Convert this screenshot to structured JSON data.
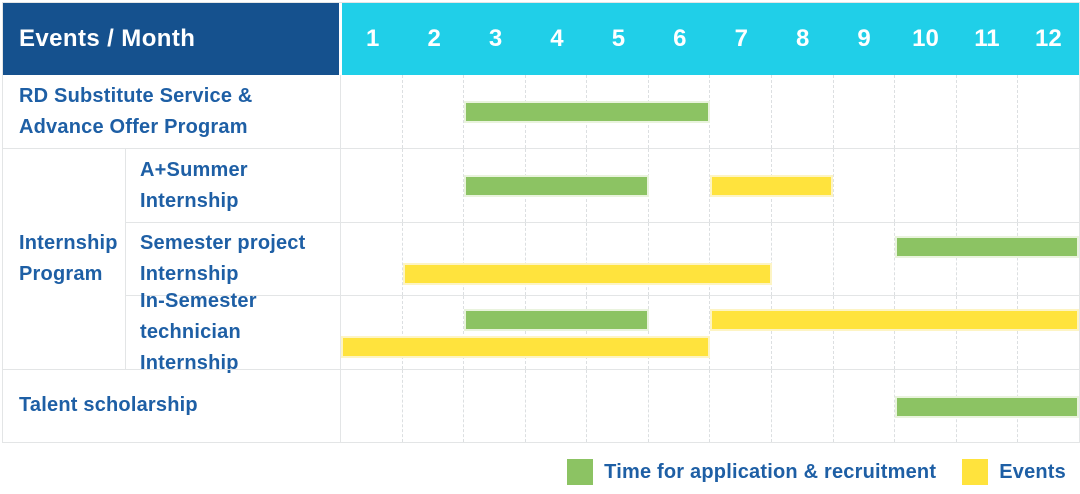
{
  "header": {
    "label": "Events / Month",
    "months": [
      "1",
      "2",
      "3",
      "4",
      "5",
      "6",
      "7",
      "8",
      "9",
      "10",
      "11",
      "12"
    ]
  },
  "group": {
    "label": "Internship Program",
    "label_lines": [
      "Internship",
      "Program"
    ]
  },
  "legend": {
    "items": [
      {
        "series": "Time for application & recruitment",
        "color": "#8CC363"
      },
      {
        "series": "Events",
        "color": "#FFE33D"
      }
    ]
  },
  "colors": {
    "header_bg": "#15518E",
    "header_text": "#FFFFFF",
    "months_bg": "#20CFE8",
    "bar_green": "#8CC363",
    "bar_yellow": "#FFE33D",
    "text_blue": "#1E5FA5"
  },
  "chart_data": {
    "type": "bar",
    "variant": "gantt",
    "title": "Events / Month",
    "x_axis": {
      "label": "Month",
      "range": [
        1,
        12
      ],
      "ticks": [
        "1",
        "2",
        "3",
        "4",
        "5",
        "6",
        "7",
        "8",
        "9",
        "10",
        "11",
        "12"
      ],
      "grid": "dashed-vertical"
    },
    "legend_position": "bottom-right",
    "series_colors": {
      "Time for application & recruitment": "#8CC363",
      "Events": "#FFE33D"
    },
    "rows": [
      {
        "group": null,
        "label": "RD Substitute Service & Advance Offer Program",
        "label_lines": [
          "RD Substitute Service &",
          "Advance Offer Program"
        ],
        "bars": [
          {
            "series": "Time for application & recruitment",
            "start_month": 3,
            "end_month": 6,
            "lane": "middle"
          }
        ]
      },
      {
        "group": "Internship Program",
        "label": "A+Summer Internship",
        "label_lines": [
          "A+Summer",
          "Internship"
        ],
        "bars": [
          {
            "series": "Time for application & recruitment",
            "start_month": 3,
            "end_month": 5,
            "lane": "middle"
          },
          {
            "series": "Events",
            "start_month": 7,
            "end_month": 8,
            "lane": "middle"
          }
        ]
      },
      {
        "group": "Internship Program",
        "label": "Semester project Internship",
        "label_lines": [
          "Semester project",
          "Internship"
        ],
        "bars": [
          {
            "series": "Time for application & recruitment",
            "start_month": 10,
            "end_month": 12,
            "lane": "top"
          },
          {
            "series": "Events",
            "start_month": 2,
            "end_month": 7,
            "lane": "bottom"
          }
        ]
      },
      {
        "group": "Internship Program",
        "label": "In-Semester technician Internship",
        "label_lines": [
          "In-Semester",
          "technician Internship"
        ],
        "bars": [
          {
            "series": "Time for application & recruitment",
            "start_month": 3,
            "end_month": 5,
            "lane": "top"
          },
          {
            "series": "Events",
            "start_month": 7,
            "end_month": 12,
            "lane": "top"
          },
          {
            "series": "Events",
            "start_month": 1,
            "end_month": 6,
            "lane": "bottom"
          }
        ]
      },
      {
        "group": null,
        "label": "Talent scholarship",
        "label_lines": [
          "Talent scholarship"
        ],
        "bars": [
          {
            "series": "Time for application & recruitment",
            "start_month": 10,
            "end_month": 12,
            "lane": "middle"
          }
        ]
      }
    ],
    "legend": [
      "Time for application & recruitment",
      "Events"
    ]
  }
}
